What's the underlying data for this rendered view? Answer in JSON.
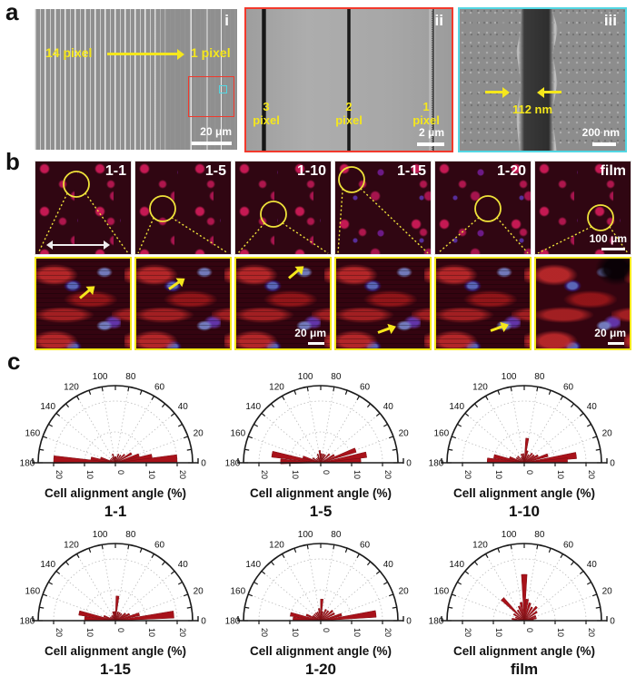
{
  "figure": {
    "panel_a_label": "a",
    "panel_b_label": "b",
    "panel_c_label": "c"
  },
  "panel_a": {
    "i": {
      "tag": "i",
      "left_label": "14 pixel",
      "right_label": "1 pixel",
      "scale_bar": "20 μm"
    },
    "ii": {
      "tag": "ii",
      "lines": [
        {
          "num": "3",
          "word": "pixel"
        },
        {
          "num": "2",
          "word": "pixel"
        },
        {
          "num": "1",
          "word": "pixel"
        }
      ],
      "scale_bar": "2 μm"
    },
    "iii": {
      "tag": "iii",
      "measurement": "112 nm",
      "scale_bar": "200 nm"
    }
  },
  "panel_b": {
    "samples": [
      "1-1",
      "1-5",
      "1-10",
      "1-15",
      "1-20",
      "film"
    ],
    "scale_bar_top": "100 μm",
    "scale_bar_bottom": "20 μm"
  },
  "colors": {
    "annotation_yellow": "#f5e71c",
    "sem_red_box": "#f2392c",
    "sem_cyan_box": "#52d7e3",
    "rose_bar": "#a8121a",
    "rose_bar_edge": "#7c0d12"
  },
  "chart_data": [
    {
      "type": "polar-rose",
      "title": "1-1",
      "xlabel": "Cell alignment angle (%)",
      "angle_ticks": [
        0,
        20,
        40,
        60,
        80,
        100,
        120,
        140,
        160,
        180
      ],
      "r_ticks": [
        "20",
        "10",
        "0",
        "10",
        "20"
      ],
      "rmax": 25,
      "grid_r": [
        10,
        20
      ],
      "wedge_width": 7,
      "wedges": [
        [
          177,
          20
        ],
        [
          170,
          8
        ],
        [
          162,
          5
        ],
        [
          150,
          2
        ],
        [
          135,
          2
        ],
        [
          120,
          2
        ],
        [
          108,
          3
        ],
        [
          95,
          2
        ],
        [
          85,
          2
        ],
        [
          70,
          3
        ],
        [
          55,
          3
        ],
        [
          42,
          4
        ],
        [
          30,
          6
        ],
        [
          18,
          8
        ],
        [
          10,
          12
        ],
        [
          4,
          20
        ]
      ]
    },
    {
      "type": "polar-rose",
      "title": "1-5",
      "xlabel": "Cell alignment angle (%)",
      "angle_ticks": [
        0,
        20,
        40,
        60,
        80,
        100,
        120,
        140,
        160,
        180
      ],
      "r_ticks": [
        "20",
        "10",
        "0",
        "10",
        "20"
      ],
      "rmax": 25,
      "grid_r": [
        10,
        20
      ],
      "wedge_width": 7,
      "wedges": [
        [
          178,
          13
        ],
        [
          170,
          16
        ],
        [
          162,
          6
        ],
        [
          150,
          3
        ],
        [
          135,
          2
        ],
        [
          120,
          2
        ],
        [
          110,
          3
        ],
        [
          95,
          4
        ],
        [
          85,
          3
        ],
        [
          72,
          3
        ],
        [
          60,
          3
        ],
        [
          45,
          4
        ],
        [
          30,
          5
        ],
        [
          20,
          12
        ],
        [
          10,
          15
        ],
        [
          3,
          13
        ]
      ]
    },
    {
      "type": "polar-rose",
      "title": "1-10",
      "xlabel": "Cell alignment angle (%)",
      "angle_ticks": [
        0,
        20,
        40,
        60,
        80,
        100,
        120,
        140,
        160,
        180
      ],
      "r_ticks": [
        "20",
        "10",
        "0",
        "10",
        "20"
      ],
      "rmax": 25,
      "grid_r": [
        10,
        20
      ],
      "wedge_width": 7,
      "wedges": [
        [
          176,
          12
        ],
        [
          168,
          10
        ],
        [
          160,
          5
        ],
        [
          148,
          3
        ],
        [
          135,
          3
        ],
        [
          120,
          2
        ],
        [
          108,
          3
        ],
        [
          96,
          3
        ],
        [
          83,
          8
        ],
        [
          75,
          4
        ],
        [
          62,
          3
        ],
        [
          50,
          4
        ],
        [
          38,
          4
        ],
        [
          28,
          5
        ],
        [
          18,
          8
        ],
        [
          8,
          17
        ],
        [
          3,
          14
        ]
      ]
    },
    {
      "type": "polar-rose",
      "title": "1-15",
      "xlabel": "Cell alignment angle (%)",
      "angle_ticks": [
        0,
        20,
        40,
        60,
        80,
        100,
        120,
        140,
        160,
        180
      ],
      "r_ticks": [
        "20",
        "10",
        "0",
        "10",
        "20"
      ],
      "rmax": 25,
      "grid_r": [
        10,
        20
      ],
      "wedge_width": 7,
      "wedges": [
        [
          176,
          10
        ],
        [
          168,
          12
        ],
        [
          158,
          4
        ],
        [
          145,
          2
        ],
        [
          130,
          2
        ],
        [
          118,
          2
        ],
        [
          105,
          3
        ],
        [
          95,
          3
        ],
        [
          85,
          8
        ],
        [
          72,
          3
        ],
        [
          60,
          3
        ],
        [
          48,
          3
        ],
        [
          35,
          4
        ],
        [
          25,
          5
        ],
        [
          15,
          8
        ],
        [
          6,
          19
        ]
      ]
    },
    {
      "type": "polar-rose",
      "title": "1-20",
      "xlabel": "Cell alignment angle (%)",
      "angle_ticks": [
        0,
        20,
        40,
        60,
        80,
        100,
        120,
        140,
        160,
        180
      ],
      "r_ticks": [
        "20",
        "10",
        "0",
        "10",
        "20"
      ],
      "rmax": 25,
      "grid_r": [
        10,
        20
      ],
      "wedge_width": 7,
      "wedges": [
        [
          176,
          9
        ],
        [
          168,
          10
        ],
        [
          158,
          5
        ],
        [
          148,
          3
        ],
        [
          135,
          3
        ],
        [
          122,
          3
        ],
        [
          110,
          3
        ],
        [
          98,
          4
        ],
        [
          87,
          7
        ],
        [
          78,
          3
        ],
        [
          65,
          4
        ],
        [
          52,
          4
        ],
        [
          40,
          5
        ],
        [
          28,
          5
        ],
        [
          16,
          7
        ],
        [
          7,
          18
        ]
      ]
    },
    {
      "type": "polar-rose",
      "title": "film",
      "xlabel": "Cell alignment angle (%)",
      "angle_ticks": [
        0,
        20,
        40,
        60,
        80,
        100,
        120,
        140,
        160,
        180
      ],
      "r_ticks": [
        "20",
        "10",
        "0",
        "10",
        "20"
      ],
      "rmax": 25,
      "grid_r": [
        10,
        20
      ],
      "wedge_width": 7,
      "wedges": [
        [
          172,
          4
        ],
        [
          160,
          3
        ],
        [
          148,
          4
        ],
        [
          135,
          10
        ],
        [
          122,
          4
        ],
        [
          110,
          5
        ],
        [
          100,
          6
        ],
        [
          90,
          15
        ],
        [
          82,
          7
        ],
        [
          72,
          6
        ],
        [
          60,
          5
        ],
        [
          48,
          6
        ],
        [
          35,
          5
        ],
        [
          22,
          4
        ],
        [
          12,
          4
        ],
        [
          5,
          3
        ]
      ]
    }
  ]
}
